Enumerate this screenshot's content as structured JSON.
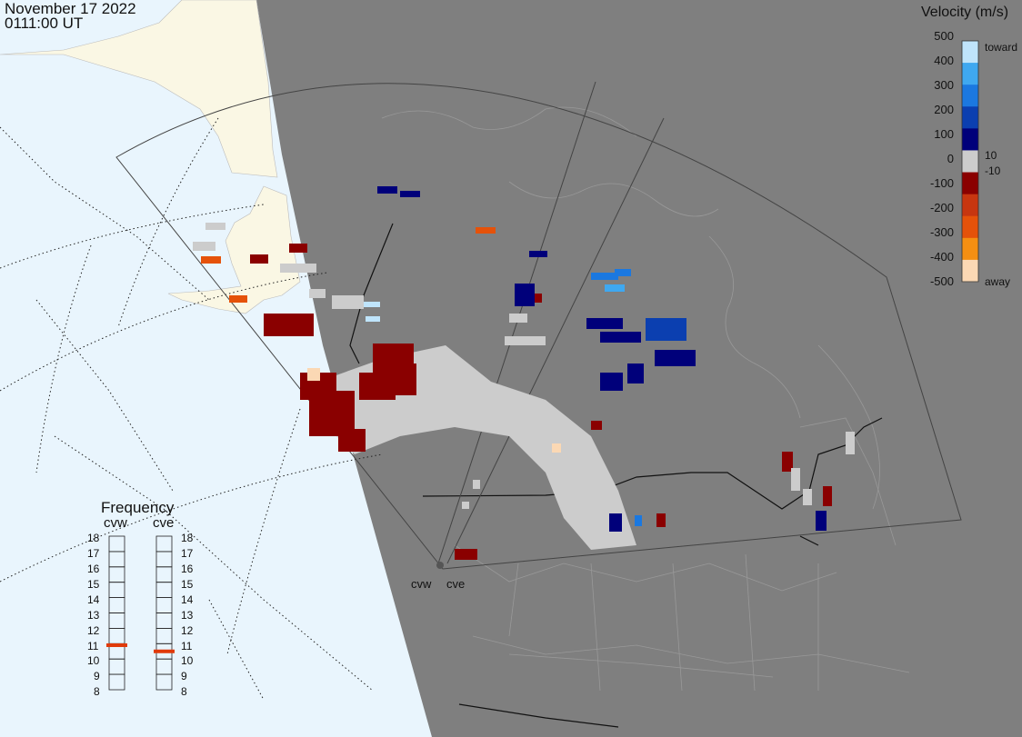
{
  "header": {
    "date": "November 17 2022",
    "time": "0111:00 UT"
  },
  "velocity_scale": {
    "title": "Velocity (m/s)",
    "tick_labels": [
      "500",
      "400",
      "300",
      "200",
      "100",
      "0",
      "-100",
      "-200",
      "-300",
      "-400",
      "-500"
    ],
    "inner_labels": [
      "10",
      "-10"
    ],
    "toward_label": "toward",
    "away_label": "away",
    "colors": [
      "#fbd8b4",
      "#f58f12",
      "#e5520a",
      "#c73610",
      "#8a0000",
      "#cccccc",
      "#00007a",
      "#0b3fb0",
      "#1b78e0",
      "#3fa8f0",
      "#bfe4fb"
    ]
  },
  "frequency_panel": {
    "title": "Frequency",
    "radars": [
      {
        "label": "cvw",
        "frequency_mhz": 10.9
      },
      {
        "label": "cve",
        "frequency_mhz": 10.5
      }
    ],
    "tick_labels": [
      "18",
      "17",
      "16",
      "15",
      "14",
      "13",
      "12",
      "11",
      "10",
      "9",
      "8"
    ],
    "marker_color": "#e03a0a"
  },
  "sites": [
    {
      "label": "cvw"
    },
    {
      "label": "cve"
    }
  ],
  "map": {
    "night_color": "#7f7f7f",
    "day_ocean_color": "#e9f5fd",
    "day_land_color": "#faf7e4",
    "ground_scatter_color": "#cccccc"
  }
}
